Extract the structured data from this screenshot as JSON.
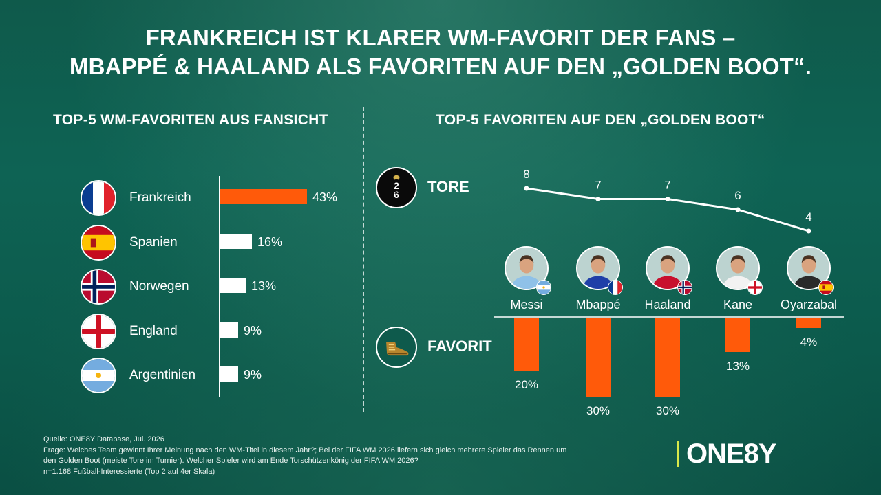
{
  "title_line1": "FRANKREICH IST KLARER WM-FAVORIT DER FANS –",
  "title_line2": "MBAPPÉ & HAALAND ALS FAVORITEN AUF DEN „GOLDEN BOOT“.",
  "left": {
    "title": "TOP-5 WM-FAVORITEN AUS FANSICHT",
    "teams": [
      {
        "name": "Frankreich",
        "value": 43,
        "label": "43%",
        "flag": "france-flag-icon"
      },
      {
        "name": "Spanien",
        "value": 16,
        "label": "16%",
        "flag": "spain-flag-icon"
      },
      {
        "name": "Norwegen",
        "value": 13,
        "label": "13%",
        "flag": "norway-flag-icon"
      },
      {
        "name": "England",
        "value": 9,
        "label": "9%",
        "flag": "england-flag-icon"
      },
      {
        "name": "Argentinien",
        "value": 9,
        "label": "9%",
        "flag": "argentina-flag-icon"
      }
    ],
    "highlight_color": "#ff5a0a"
  },
  "right": {
    "title": "TOP-5 FAVORITEN AUF DEN „GOLDEN BOOT“",
    "tore_label": "TORE",
    "favorit_label": "FAVORIT",
    "tore_icon": "fifa-world-cup-2026-icon",
    "favorit_icon": "golden-boot-icon"
  },
  "chart_data": [
    {
      "type": "bar",
      "orientation": "horizontal",
      "title": "TOP-5 WM-FAVORITEN AUS FANSICHT",
      "categories": [
        "Frankreich",
        "Spanien",
        "Norwegen",
        "England",
        "Argentinien"
      ],
      "values": [
        43,
        16,
        13,
        9,
        9
      ],
      "unit": "%"
    },
    {
      "type": "line",
      "title": "TOP-5 FAVORITEN AUF DEN „GOLDEN BOOT“",
      "series_label": "TORE",
      "categories": [
        "Messi",
        "Mbappé",
        "Haaland",
        "Kane",
        "Oyarzabal"
      ],
      "values": [
        8,
        7,
        7,
        6,
        4
      ],
      "labels": [
        "8",
        "7",
        "7",
        "6",
        "4"
      ]
    },
    {
      "type": "bar",
      "orientation": "vertical-downward",
      "series_label": "FAVORIT",
      "categories": [
        "Messi",
        "Mbappé",
        "Haaland",
        "Kane",
        "Oyarzabal"
      ],
      "values": [
        20,
        30,
        30,
        13,
        4
      ],
      "labels": [
        "20%",
        "30%",
        "30%",
        "13%",
        "4%"
      ],
      "unit": "%",
      "color": "#ff5a0a"
    }
  ],
  "players": [
    {
      "name": "Messi",
      "flag": "argentina-flag-icon",
      "shirt": "#8fc1e8"
    },
    {
      "name": "Mbappé",
      "flag": "france-flag-icon",
      "shirt": "#1f3fa8"
    },
    {
      "name": "Haaland",
      "flag": "norway-flag-icon",
      "shirt": "#c8102e"
    },
    {
      "name": "Kane",
      "flag": "england-flag-icon",
      "shirt": "#f2f2f2"
    },
    {
      "name": "Oyarzabal",
      "flag": "spain-flag-icon",
      "shirt": "#2a2a2a"
    }
  ],
  "footnote": {
    "line1": "Quelle: ONE8Y Database, Jul. 2026",
    "line2": "Frage: Welches Team gewinnt Ihrer Meinung nach den WM-Titel in diesem Jahr?; Bei der FIFA WM 2026 liefern sich gleich mehrere Spieler das Rennen um",
    "line3": "den Golden Boot (meiste Tore im Turnier). Welcher Spieler wird am Ende Torschützenkönig der FIFA WM 2026?",
    "line4": "n=1.168 Fußball-Interessierte (Top 2 auf 4er Skala)"
  },
  "logo": "ONE8Y"
}
